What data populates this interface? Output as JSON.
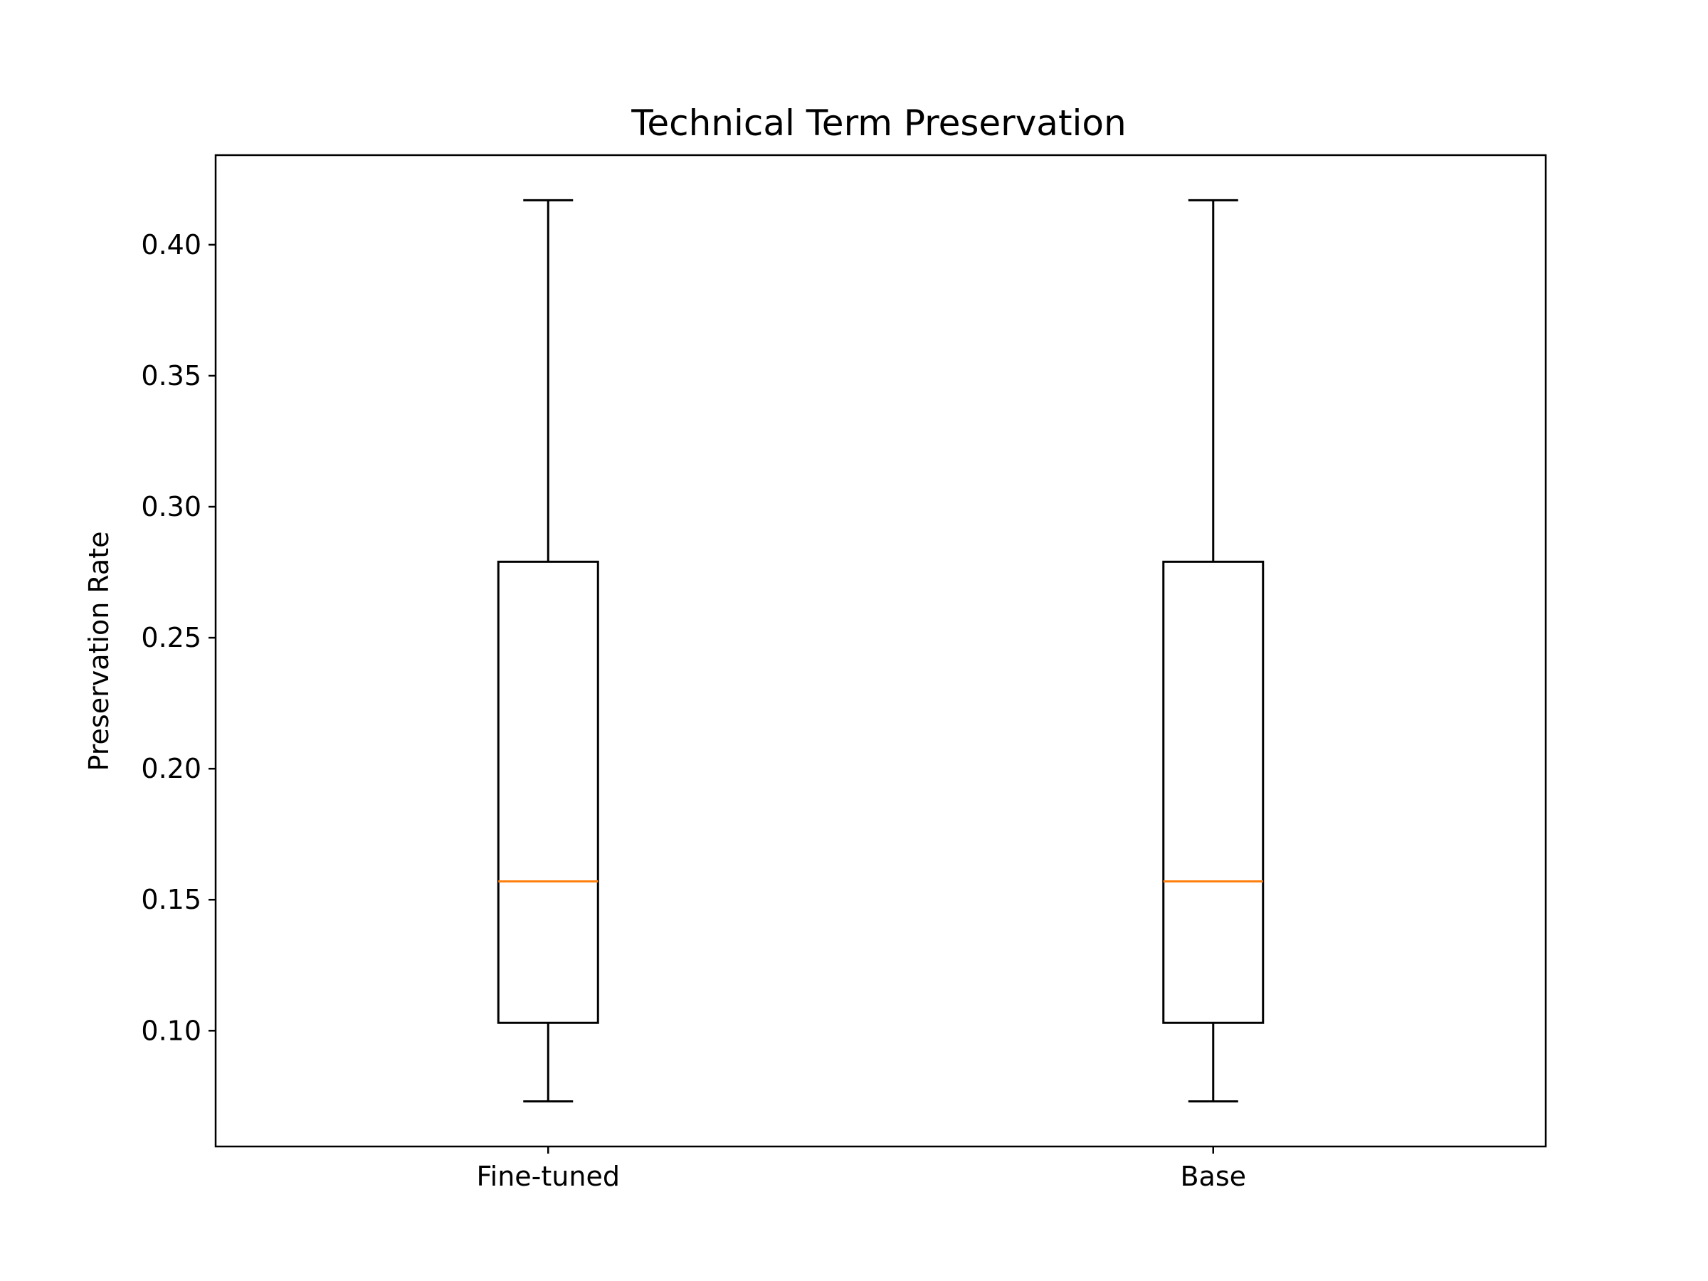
{
  "chart_data": {
    "type": "box",
    "title": "Technical Term Preservation",
    "xlabel": "",
    "ylabel": "Preservation Rate",
    "categories": [
      "Fine-tuned",
      "Base"
    ],
    "boxes": [
      {
        "label": "Fine-tuned",
        "whisker_low": 0.073,
        "q1": 0.103,
        "median": 0.157,
        "q3": 0.279,
        "whisker_high": 0.417
      },
      {
        "label": "Base",
        "whisker_low": 0.073,
        "q1": 0.103,
        "median": 0.157,
        "q3": 0.279,
        "whisker_high": 0.417
      }
    ],
    "yticks": [
      0.1,
      0.15,
      0.2,
      0.25,
      0.3,
      0.35,
      0.4
    ],
    "ytick_labels": [
      "0.10",
      "0.15",
      "0.20",
      "0.25",
      "0.30",
      "0.35",
      "0.40"
    ],
    "ylim": [
      0.0558,
      0.4342
    ],
    "grid": false,
    "legend": "none",
    "colors": {
      "box": "#000000",
      "median": "#ff7f0e"
    }
  }
}
